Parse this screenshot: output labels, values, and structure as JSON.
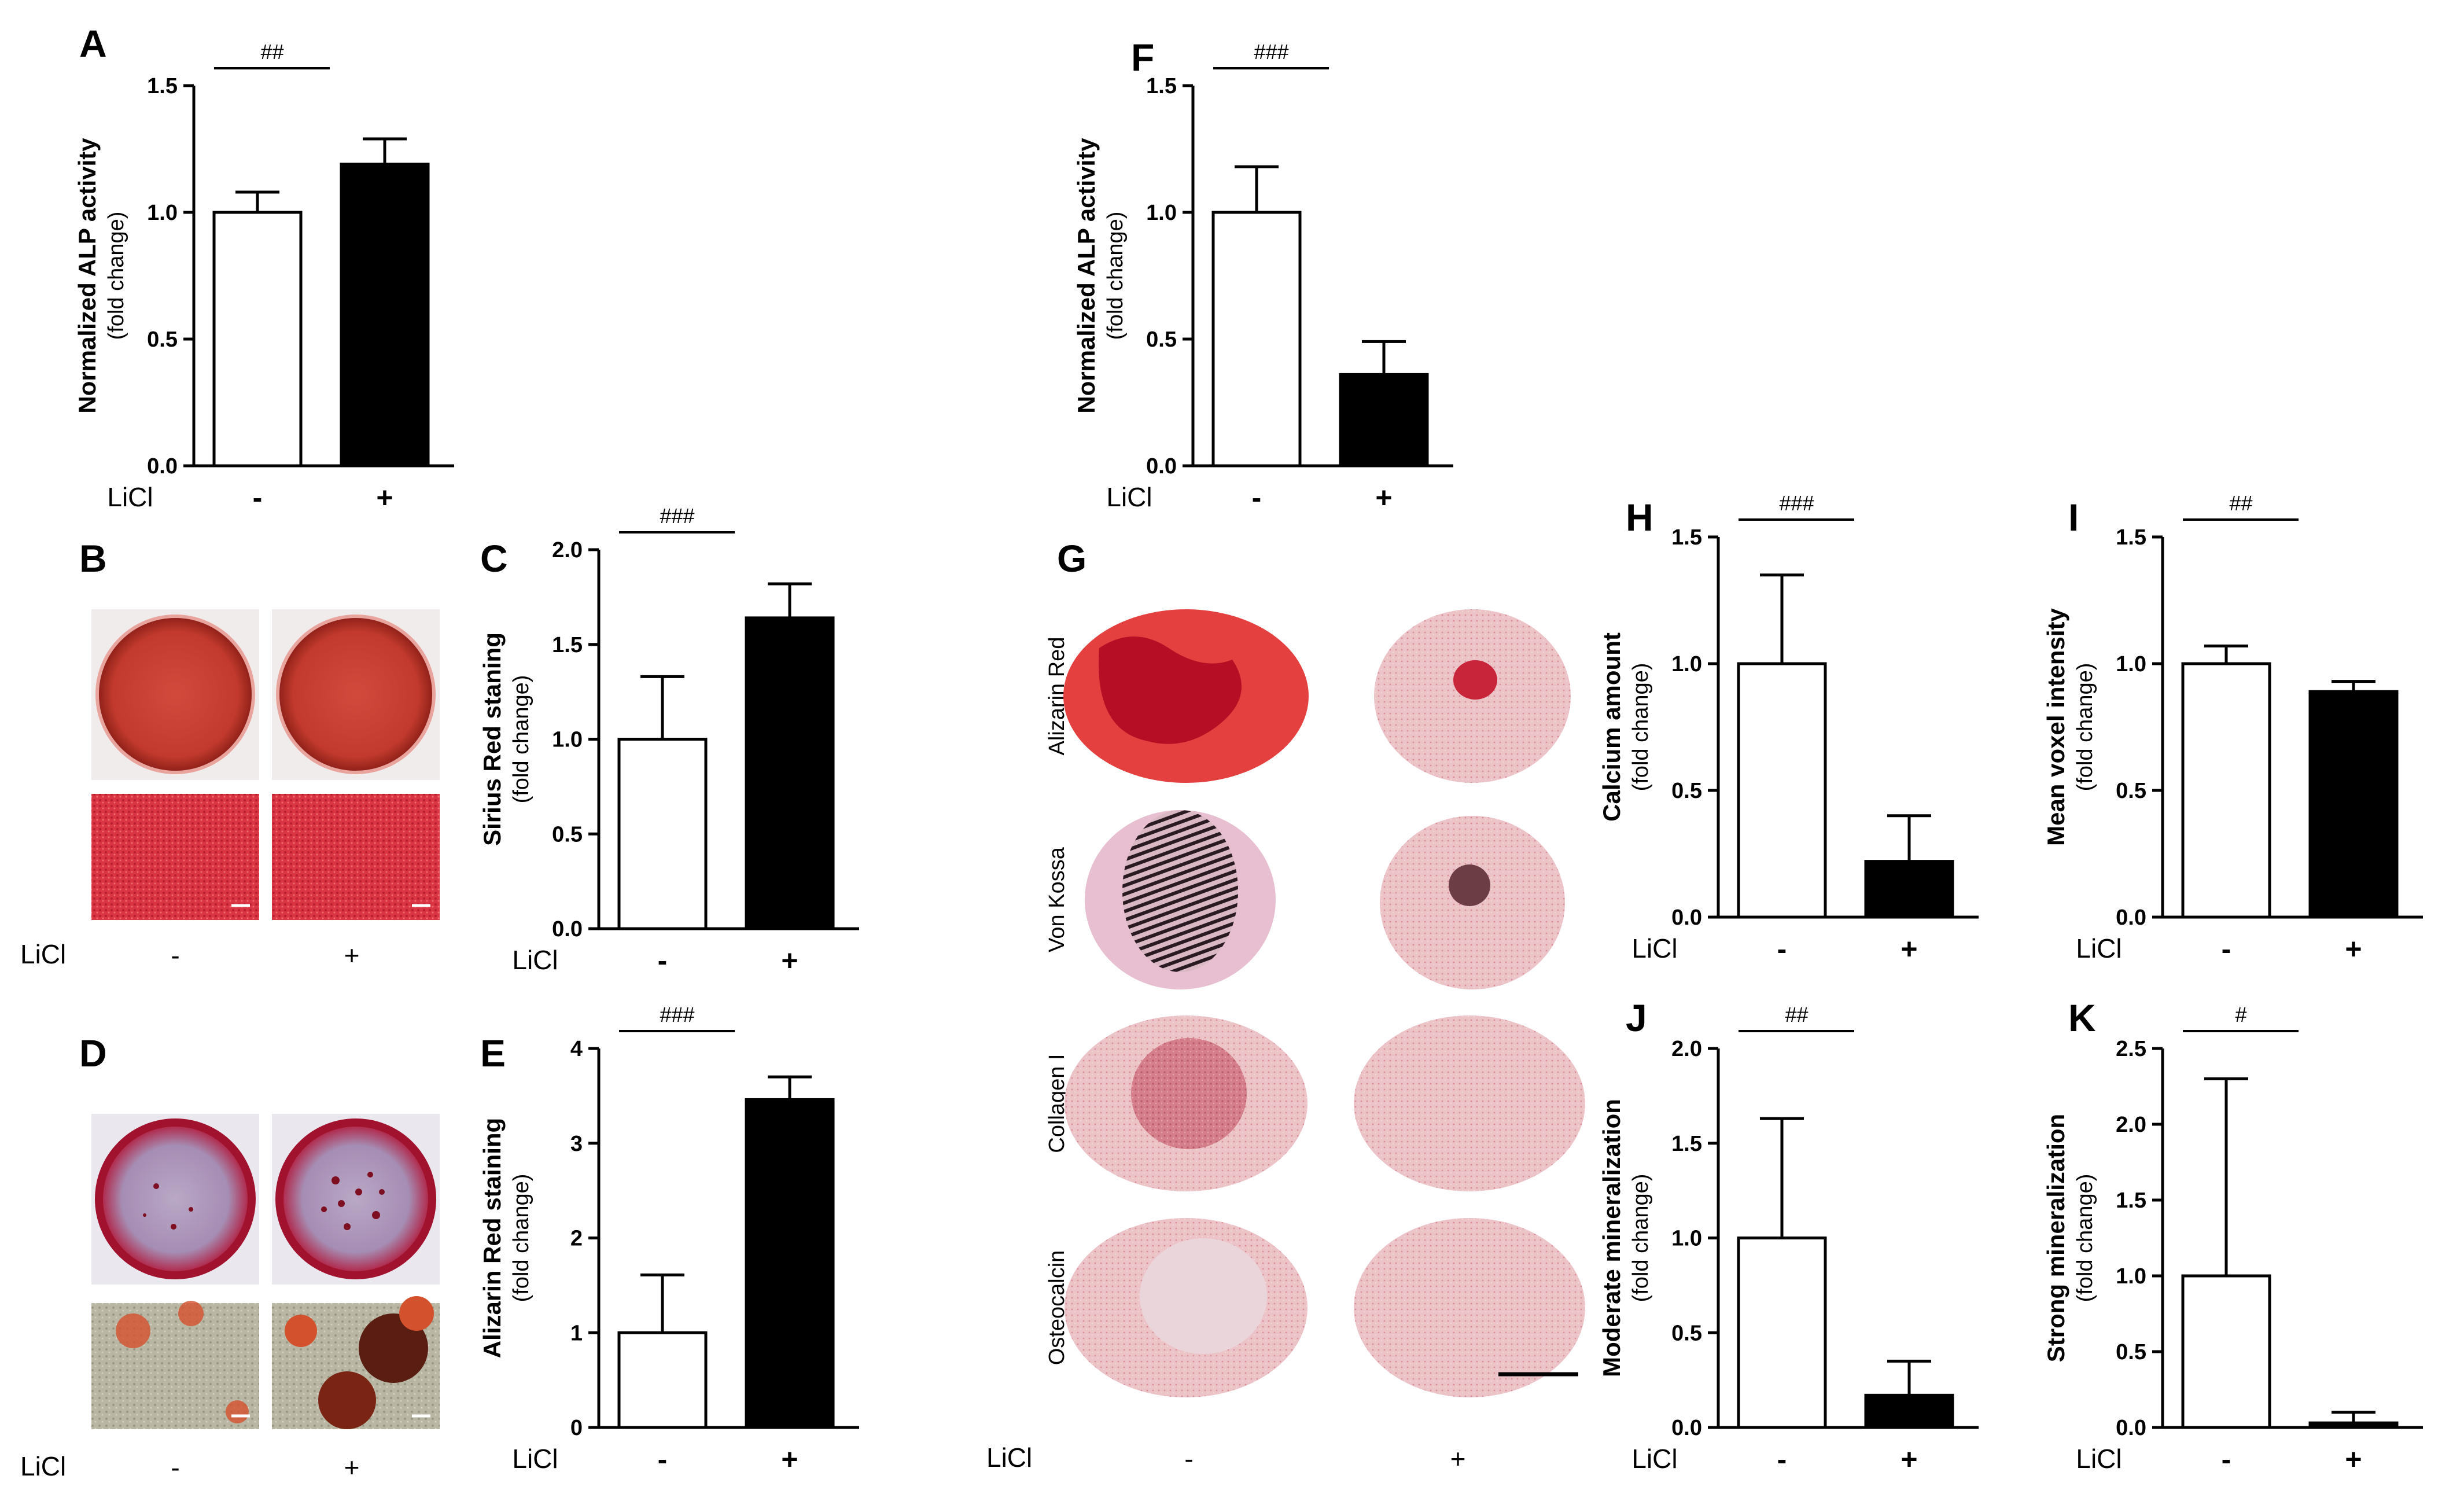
{
  "panel_letters": [
    "A",
    "B",
    "C",
    "D",
    "E",
    "F",
    "G",
    "H",
    "I",
    "J",
    "K"
  ],
  "licl_label": "LiCl",
  "group_labels": [
    "-",
    "+"
  ],
  "colors": {
    "control_fill": "#ffffff",
    "treated_fill": "#000000",
    "axis": "#000000"
  },
  "image_panels": {
    "B": {
      "cells": [
        "plate-red",
        "plate-red",
        "micro-red",
        "micro-red"
      ]
    },
    "D": {
      "cells": [
        "plate-spotted",
        "plate-spotted",
        "micro-nodules",
        "micro-nodules"
      ]
    },
    "G": {
      "row_labels": [
        "Alizarin Red",
        "Von Kossa",
        "Collagen I",
        "Osteocalcin"
      ],
      "cells": [
        "alizarin-dense",
        "alizarin-center",
        "vonkossa-dense",
        "vonkossa-center",
        "collagen-center",
        "collagen-light",
        "osteocalcin-center",
        "osteocalcin-light"
      ]
    }
  },
  "chart_data": [
    {
      "panel": "A",
      "type": "bar",
      "ylabel": "Normalized ALP activity",
      "ylabel_sub": "(fold change)",
      "ylim": [
        0,
        1.5
      ],
      "ticks": [
        "0.0",
        "0.5",
        "1.0",
        "1.5"
      ],
      "categories": [
        "-",
        "+"
      ],
      "values": [
        1.0,
        1.19
      ],
      "errors": [
        0.08,
        0.1
      ],
      "significance": "##"
    },
    {
      "panel": "C",
      "type": "bar",
      "ylabel": "Sirius Red staning",
      "ylabel_sub": "(fold change)",
      "ylim": [
        0,
        2.0
      ],
      "ticks": [
        "0.0",
        "0.5",
        "1.0",
        "1.5",
        "2.0"
      ],
      "categories": [
        "-",
        "+"
      ],
      "values": [
        1.0,
        1.64
      ],
      "errors": [
        0.33,
        0.18
      ],
      "significance": "###"
    },
    {
      "panel": "E",
      "type": "bar",
      "ylabel": "Alizarin Red staining",
      "ylabel_sub": "(fold change)",
      "ylim": [
        0,
        4
      ],
      "ticks": [
        "0",
        "1",
        "2",
        "3",
        "4"
      ],
      "categories": [
        "-",
        "+"
      ],
      "values": [
        1.0,
        3.46
      ],
      "errors": [
        0.61,
        0.24
      ],
      "significance": "###"
    },
    {
      "panel": "F",
      "type": "bar",
      "ylabel": "Normalized ALP activity",
      "ylabel_sub": "(fold change)",
      "ylim": [
        0,
        1.5
      ],
      "ticks": [
        "0.0",
        "0.5",
        "1.0",
        "1.5"
      ],
      "categories": [
        "-",
        "+"
      ],
      "values": [
        1.0,
        0.36
      ],
      "errors": [
        0.18,
        0.13
      ],
      "significance": "###"
    },
    {
      "panel": "H",
      "type": "bar",
      "ylabel": "Calcium amount",
      "ylabel_sub": "(fold change)",
      "ylim": [
        0,
        1.5
      ],
      "ticks": [
        "0.0",
        "0.5",
        "1.0",
        "1.5"
      ],
      "categories": [
        "-",
        "+"
      ],
      "values": [
        1.0,
        0.22
      ],
      "errors": [
        0.35,
        0.18
      ],
      "significance": "###"
    },
    {
      "panel": "I",
      "type": "bar",
      "ylabel": "Mean voxel intensity",
      "ylabel_sub": "(fold change)",
      "ylim": [
        0,
        1.5
      ],
      "ticks": [
        "0.0",
        "0.5",
        "1.0",
        "1.5"
      ],
      "categories": [
        "-",
        "+"
      ],
      "values": [
        1.0,
        0.89
      ],
      "errors": [
        0.07,
        0.04
      ],
      "significance": "##"
    },
    {
      "panel": "J",
      "type": "bar",
      "ylabel": "Moderate mineralization",
      "ylabel_sub": "(fold change)",
      "ylim": [
        0,
        2.0
      ],
      "ticks": [
        "0.0",
        "0.5",
        "1.0",
        "1.5",
        "2.0"
      ],
      "categories": [
        "-",
        "+"
      ],
      "values": [
        1.0,
        0.17
      ],
      "errors": [
        0.63,
        0.18
      ],
      "significance": "##"
    },
    {
      "panel": "K",
      "type": "bar",
      "ylabel": "Strong mineralization",
      "ylabel_sub": "(fold change)",
      "ylim": [
        0,
        2.5
      ],
      "ticks": [
        "0.0",
        "0.5",
        "1.0",
        "1.5",
        "2.0",
        "2.5"
      ],
      "categories": [
        "-",
        "+"
      ],
      "values": [
        1.0,
        0.03
      ],
      "errors": [
        1.3,
        0.07
      ],
      "significance": "#"
    }
  ]
}
